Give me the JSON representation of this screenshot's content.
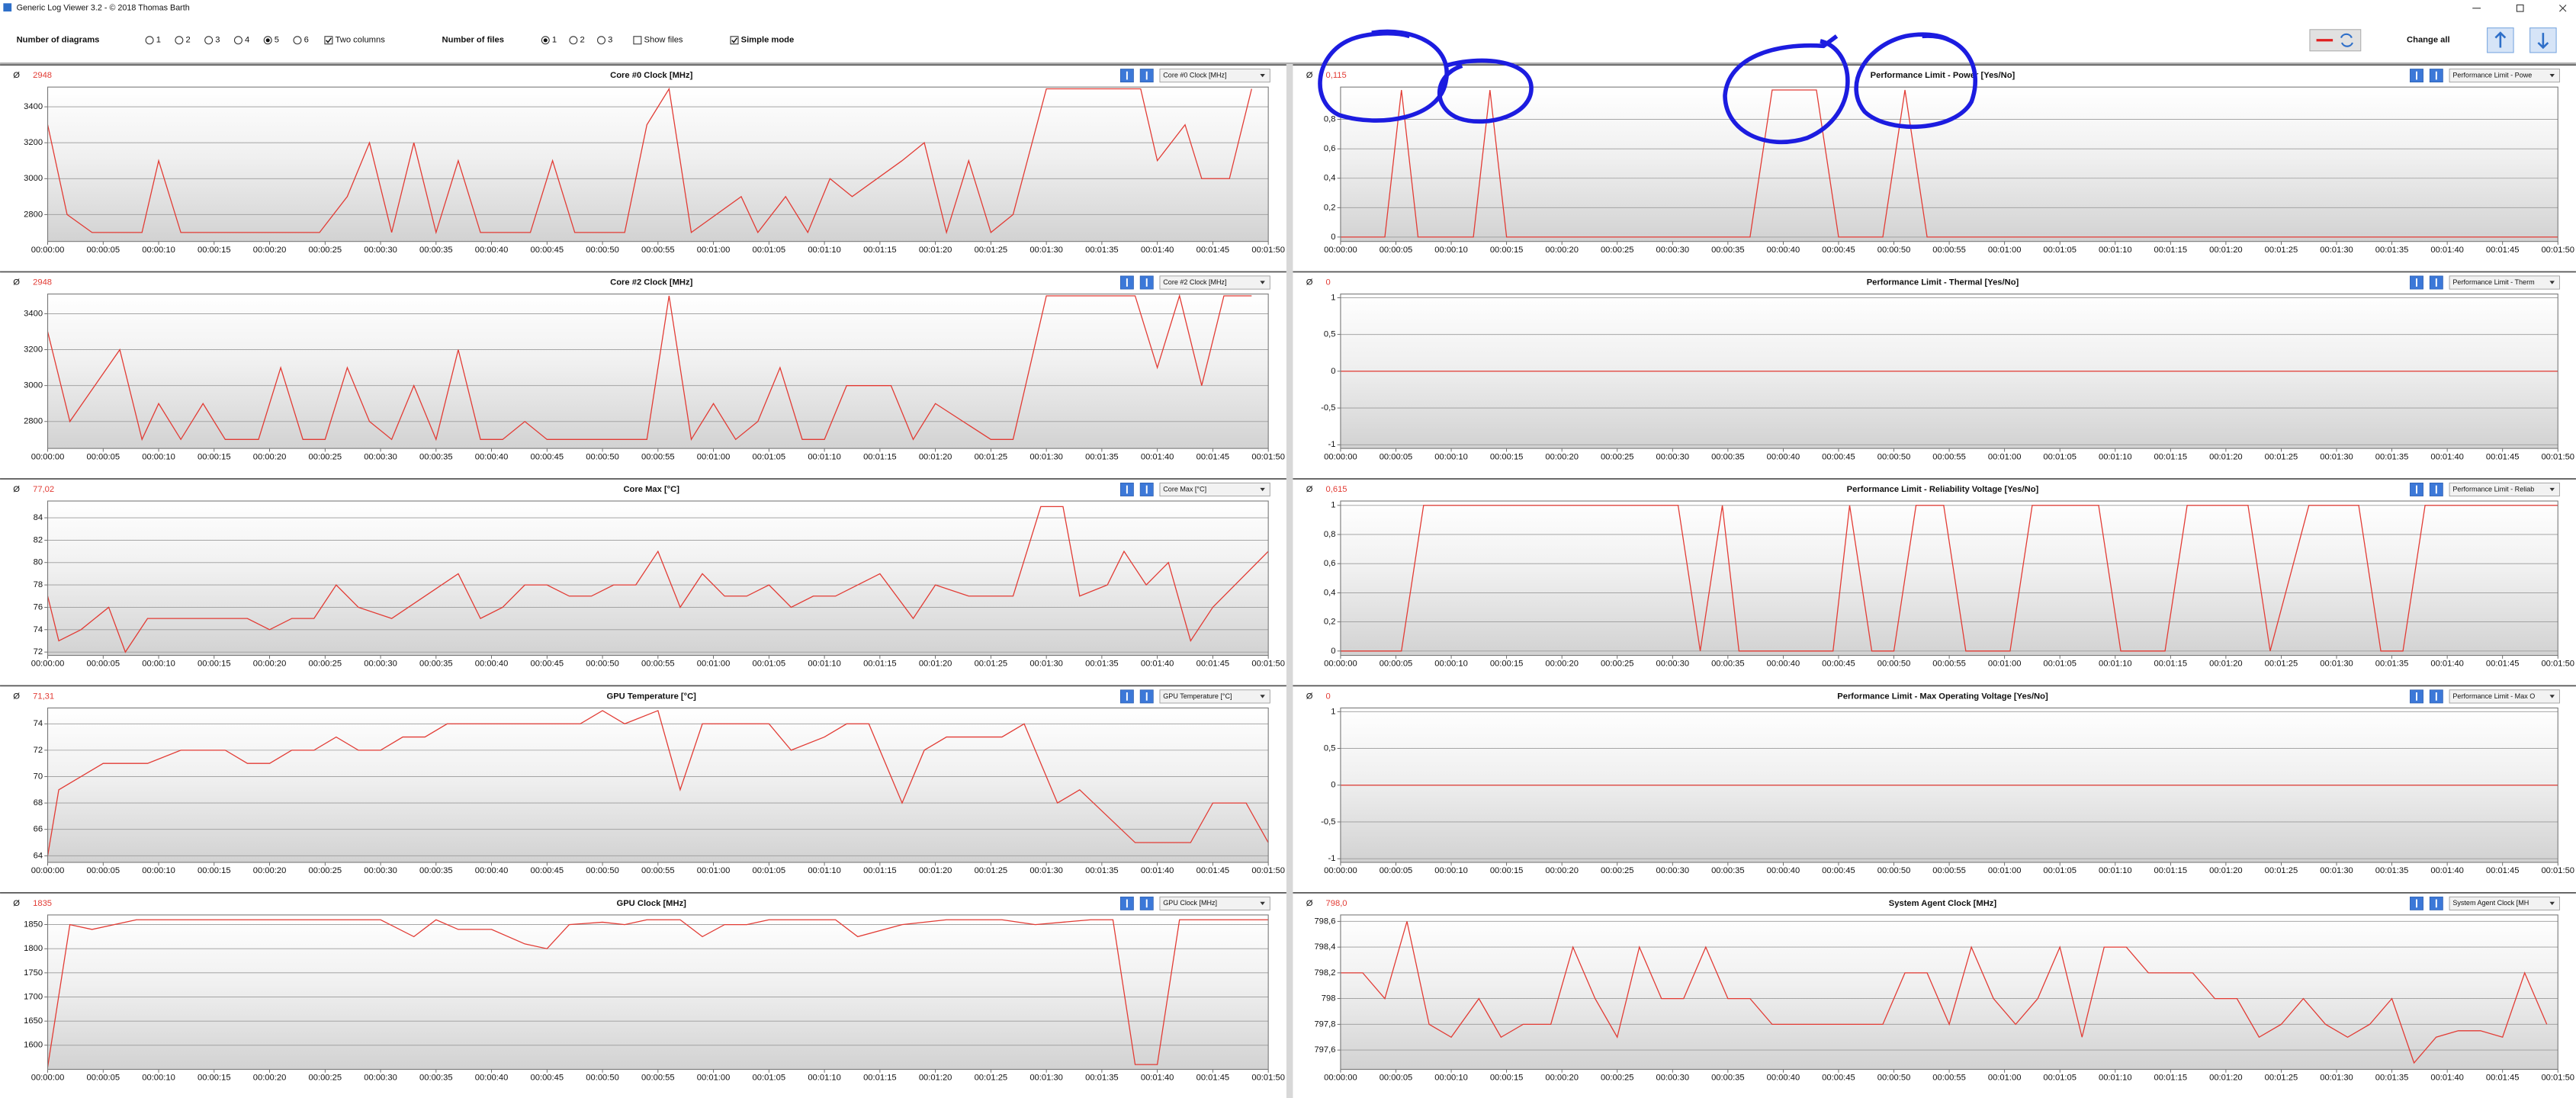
{
  "window": {
    "title": "Generic Log Viewer 3.2 - © 2018 Thomas Barth"
  },
  "toolbar": {
    "diagrams_label": "Number of diagrams",
    "diagram_options": [
      "1",
      "2",
      "3",
      "4",
      "5",
      "6"
    ],
    "diagrams_selected": "5",
    "two_columns": {
      "label": "Two columns",
      "checked": true
    },
    "files_label": "Number of files",
    "file_options": [
      "1",
      "2",
      "3"
    ],
    "files_selected": "1",
    "show_files": {
      "label": "Show files",
      "checked": false
    },
    "simple_mode": {
      "label": "Simple mode",
      "checked": true
    },
    "change_all": "Change all"
  },
  "avg_symbol": "Ø",
  "x_axis": {
    "xlim": [
      0,
      110
    ],
    "xticks": [
      {
        "value": 0,
        "label": "00:00:00"
      },
      {
        "value": 5,
        "label": "00:00:05"
      },
      {
        "value": 10,
        "label": "00:00:10"
      },
      {
        "value": 15,
        "label": "00:00:15"
      },
      {
        "value": 20,
        "label": "00:00:20"
      },
      {
        "value": 25,
        "label": "00:00:25"
      },
      {
        "value": 30,
        "label": "00:00:30"
      },
      {
        "value": 35,
        "label": "00:00:35"
      },
      {
        "value": 40,
        "label": "00:00:40"
      },
      {
        "value": 45,
        "label": "00:00:45"
      },
      {
        "value": 50,
        "label": "00:00:50"
      },
      {
        "value": 55,
        "label": "00:00:55"
      },
      {
        "value": 60,
        "label": "00:01:00"
      },
      {
        "value": 65,
        "label": "00:01:05"
      },
      {
        "value": 70,
        "label": "00:01:10"
      },
      {
        "value": 75,
        "label": "00:01:15"
      },
      {
        "value": 80,
        "label": "00:01:20"
      },
      {
        "value": 85,
        "label": "00:01:25"
      },
      {
        "value": 90,
        "label": "00:01:30"
      },
      {
        "value": 95,
        "label": "00:01:35"
      },
      {
        "value": 100,
        "label": "00:01:40"
      },
      {
        "value": 105,
        "label": "00:01:45"
      },
      {
        "value": 110,
        "label": "00:01:50"
      }
    ]
  },
  "chart_data": [
    {
      "type": "line",
      "title": "Core #0 Clock [MHz]",
      "average": "2948",
      "selector": "Core #0 Clock [MHz]",
      "color": "#e23b34",
      "grid": true,
      "ylim": [
        2650,
        3510
      ],
      "yticks": [
        2800,
        3000,
        3200,
        3400
      ],
      "x": [
        0,
        1.75,
        4,
        8.5,
        10,
        12,
        24.5,
        27,
        29,
        31,
        33,
        35,
        37,
        39,
        43.5,
        45.5,
        47.5,
        52,
        54,
        56,
        58,
        62.5,
        64,
        66.5,
        68.5,
        70.5,
        72.5,
        77,
        79,
        81,
        83,
        85,
        87,
        90,
        98.5,
        100,
        102.5,
        104,
        106.5,
        108.5
      ],
      "values": [
        3300,
        2800,
        2700,
        2700,
        3100,
        2700,
        2700,
        2900,
        3200,
        2700,
        3200,
        2700,
        3100,
        2700,
        2700,
        3100,
        2700,
        2700,
        3300,
        3500,
        2700,
        2900,
        2700,
        2900,
        2700,
        3000,
        2900,
        3100,
        3200,
        2700,
        3100,
        2700,
        2800,
        3500,
        3500,
        3100,
        3300,
        3000,
        3000,
        3500
      ]
    },
    {
      "type": "line",
      "title": "Core #2 Clock [MHz]",
      "average": "2948",
      "selector": "Core #2 Clock [MHz]",
      "color": "#e23b34",
      "grid": true,
      "ylim": [
        2650,
        3510
      ],
      "yticks": [
        2800,
        3000,
        3200,
        3400
      ],
      "x": [
        0,
        2,
        6.5,
        8.5,
        10,
        12,
        14,
        16,
        19,
        21,
        23,
        25,
        27,
        29,
        31,
        33,
        35,
        37,
        39,
        41,
        43,
        45,
        54,
        56,
        58,
        60,
        62,
        64,
        66,
        68,
        70,
        72,
        76,
        78,
        80,
        85,
        87,
        90,
        98,
        100,
        102,
        104,
        106,
        108.5
      ],
      "values": [
        3300,
        2800,
        3200,
        2700,
        2900,
        2700,
        2900,
        2700,
        2700,
        3100,
        2700,
        2700,
        3100,
        2800,
        2700,
        3000,
        2700,
        3200,
        2700,
        2700,
        2800,
        2700,
        2700,
        3500,
        2700,
        2900,
        2700,
        2800,
        3100,
        2700,
        2700,
        3000,
        3000,
        2700,
        2900,
        2700,
        2700,
        3500,
        3500,
        3100,
        3500,
        3000,
        3500,
        3500
      ]
    },
    {
      "type": "line",
      "title": "Core Max [°C]",
      "average": "77,02",
      "selector": "Core Max [°C]",
      "color": "#e23b34",
      "grid": true,
      "ylim": [
        71.7,
        85.5
      ],
      "yticks": [
        72,
        74,
        76,
        78,
        80,
        82,
        84
      ],
      "x": [
        0,
        1,
        3,
        5.5,
        7,
        9,
        18,
        20,
        22,
        24,
        26,
        28,
        31,
        34,
        37,
        39,
        41,
        43,
        45,
        47,
        49,
        51,
        53,
        55,
        57,
        59,
        61,
        63,
        65,
        67,
        69,
        71,
        75,
        78,
        80,
        83,
        85,
        87,
        89.5,
        91.5,
        93,
        95.5,
        97,
        99,
        101,
        103,
        105,
        110
      ],
      "values": [
        77,
        73,
        74,
        76,
        72,
        75,
        75,
        74,
        75,
        75,
        78,
        76,
        75,
        77,
        79,
        75,
        76,
        78,
        78,
        77,
        77,
        78,
        78,
        81,
        76,
        79,
        77,
        77,
        78,
        76,
        77,
        77,
        79,
        75,
        78,
        77,
        77,
        77,
        85,
        85,
        77,
        78,
        81,
        78,
        80,
        73,
        76,
        81
      ]
    },
    {
      "type": "line",
      "title": "GPU Temperature [°C]",
      "average": "71,31",
      "selector": "GPU Temperature [°C]",
      "color": "#e23b34",
      "grid": true,
      "ylim": [
        63.5,
        75.2
      ],
      "yticks": [
        64,
        66,
        68,
        70,
        72,
        74
      ],
      "x": [
        0,
        1,
        5,
        9,
        12,
        16,
        18,
        20,
        22,
        24,
        26,
        28,
        30,
        32,
        34,
        36,
        48,
        50,
        52,
        55,
        57,
        59,
        65,
        67,
        70,
        72,
        74,
        77,
        79,
        81,
        86,
        88,
        91,
        93,
        98,
        103,
        105,
        108,
        110
      ],
      "values": [
        64,
        69,
        71,
        71,
        72,
        72,
        71,
        71,
        72,
        72,
        73,
        72,
        72,
        73,
        73,
        74,
        74,
        75,
        74,
        75,
        69,
        74,
        74,
        72,
        73,
        74,
        74,
        68,
        72,
        73,
        73,
        74,
        68,
        69,
        65,
        65,
        68,
        68,
        65
      ]
    },
    {
      "type": "line",
      "title": "GPU Clock [MHz]",
      "average": "1835",
      "selector": "GPU Clock [MHz]",
      "color": "#e23b34",
      "grid": true,
      "ylim": [
        1550,
        1870
      ],
      "yticks": [
        1600,
        1650,
        1700,
        1750,
        1800,
        1850
      ],
      "x": [
        0,
        2,
        4,
        8,
        30,
        33,
        35,
        37,
        40,
        43,
        45,
        47,
        50,
        52,
        54,
        57,
        59,
        61,
        63,
        65,
        71,
        73,
        77,
        81,
        86,
        89,
        94,
        96,
        98,
        100,
        102,
        110
      ],
      "values": [
        1555,
        1850,
        1840,
        1860,
        1860,
        1825,
        1860,
        1840,
        1840,
        1810,
        1800,
        1850,
        1855,
        1850,
        1860,
        1860,
        1825,
        1850,
        1850,
        1860,
        1860,
        1825,
        1850,
        1860,
        1860,
        1850,
        1860,
        1860,
        1560,
        1560,
        1860,
        1860
      ]
    },
    {
      "type": "line",
      "title": "Performance Limit - Power [Yes/No]",
      "average": "0,115",
      "selector": "Performance Limit - Powe",
      "color": "#e23b34",
      "grid": true,
      "ylim": [
        -0.03,
        1.02
      ],
      "yticks": [
        {
          "value": 0,
          "label": "0"
        },
        {
          "value": 0.2,
          "label": "0,2"
        },
        {
          "value": 0.4,
          "label": "0,4"
        },
        {
          "value": 0.6,
          "label": "0,6"
        },
        {
          "value": 0.8,
          "label": "0,8"
        }
      ],
      "x": [
        0,
        4,
        5.5,
        7,
        12,
        13.5,
        15,
        37,
        39,
        43,
        45,
        49,
        51,
        53,
        110
      ],
      "values": [
        0,
        0,
        1,
        0,
        0,
        1,
        0,
        0,
        1,
        1,
        0,
        0,
        1,
        0,
        0
      ]
    },
    {
      "type": "line",
      "title": "Performance Limit - Thermal [Yes/No]",
      "average": "0",
      "selector": "Performance Limit - Therm",
      "color": "#e23b34",
      "grid": true,
      "ylim": [
        -1.05,
        1.05
      ],
      "yticks": [
        {
          "value": -1,
          "label": "-1"
        },
        {
          "value": -0.5,
          "label": "-0,5"
        },
        {
          "value": 0,
          "label": "0"
        },
        {
          "value": 0.5,
          "label": "0,5"
        },
        {
          "value": 1,
          "label": "1"
        }
      ],
      "x": [
        0,
        110
      ],
      "values": [
        0,
        0
      ]
    },
    {
      "type": "line",
      "title": "Performance Limit - Reliability Voltage [Yes/No]",
      "average": "0,615",
      "selector": "Performance Limit - Reliab",
      "color": "#e23b34",
      "grid": true,
      "ylim": [
        -0.03,
        1.03
      ],
      "yticks": [
        {
          "value": 0,
          "label": "0"
        },
        {
          "value": 0.2,
          "label": "0,2"
        },
        {
          "value": 0.4,
          "label": "0,4"
        },
        {
          "value": 0.6,
          "label": "0,6"
        },
        {
          "value": 0.8,
          "label": "0,8"
        },
        {
          "value": 1,
          "label": "1"
        }
      ],
      "x": [
        0,
        5.5,
        7.5,
        30.5,
        32.5,
        34.5,
        36,
        44.5,
        46,
        48,
        50,
        52,
        54.5,
        56.5,
        60.5,
        62.5,
        68.5,
        70.5,
        74.5,
        76.5,
        82,
        84,
        87.5,
        92,
        94,
        96,
        98,
        110
      ],
      "values": [
        0,
        0,
        1,
        1,
        0,
        1,
        0,
        0,
        1,
        0,
        0,
        1,
        1,
        0,
        0,
        1,
        1,
        0,
        0,
        1,
        1,
        0,
        1,
        1,
        0,
        0,
        1,
        1
      ]
    },
    {
      "type": "line",
      "title": "Performance Limit - Max Operating Voltage [Yes/No]",
      "average": "0",
      "selector": "Performance Limit - Max O",
      "color": "#e23b34",
      "grid": true,
      "ylim": [
        -1.05,
        1.05
      ],
      "yticks": [
        {
          "value": -1,
          "label": "-1"
        },
        {
          "value": -0.5,
          "label": "-0,5"
        },
        {
          "value": 0,
          "label": "0"
        },
        {
          "value": 0.5,
          "label": "0,5"
        },
        {
          "value": 1,
          "label": "1"
        }
      ],
      "x": [
        0,
        110
      ],
      "values": [
        0,
        0
      ]
    },
    {
      "type": "line",
      "title": "System Agent Clock [MHz]",
      "average": "798,0",
      "selector": "System Agent Clock [MH",
      "color": "#e23b34",
      "grid": true,
      "ylim": [
        797.45,
        798.65
      ],
      "yticks": [
        {
          "value": 797.6,
          "label": "797,6"
        },
        {
          "value": 797.8,
          "label": "797,8"
        },
        {
          "value": 798,
          "label": "798"
        },
        {
          "value": 798.2,
          "label": "798,2"
        },
        {
          "value": 798.4,
          "label": "798,4"
        },
        {
          "value": 798.6,
          "label": "798,6"
        }
      ],
      "x": [
        0,
        2,
        4,
        6,
        8,
        10,
        12.5,
        14.5,
        16.5,
        19,
        21,
        23,
        25,
        27,
        29,
        31,
        33,
        35,
        37,
        39,
        49,
        51,
        53,
        55,
        57,
        59,
        61,
        63,
        65,
        67,
        69,
        71,
        73,
        77,
        79,
        81,
        83,
        85,
        87,
        89,
        91,
        93,
        95,
        97,
        99,
        101,
        103,
        105,
        107,
        109
      ],
      "values": [
        798.2,
        798.2,
        798,
        798.6,
        797.8,
        797.7,
        798,
        797.7,
        797.8,
        797.8,
        798.4,
        798,
        797.7,
        798.4,
        798,
        798,
        798.4,
        798,
        798,
        797.8,
        797.8,
        798.2,
        798.2,
        797.8,
        798.4,
        798,
        797.8,
        798,
        798.4,
        797.7,
        798.4,
        798.4,
        798.2,
        798.2,
        798,
        798,
        797.7,
        797.8,
        798,
        797.8,
        797.7,
        797.8,
        798,
        797.5,
        797.7,
        797.75,
        797.75,
        797.7,
        798.2,
        797.8
      ]
    }
  ]
}
